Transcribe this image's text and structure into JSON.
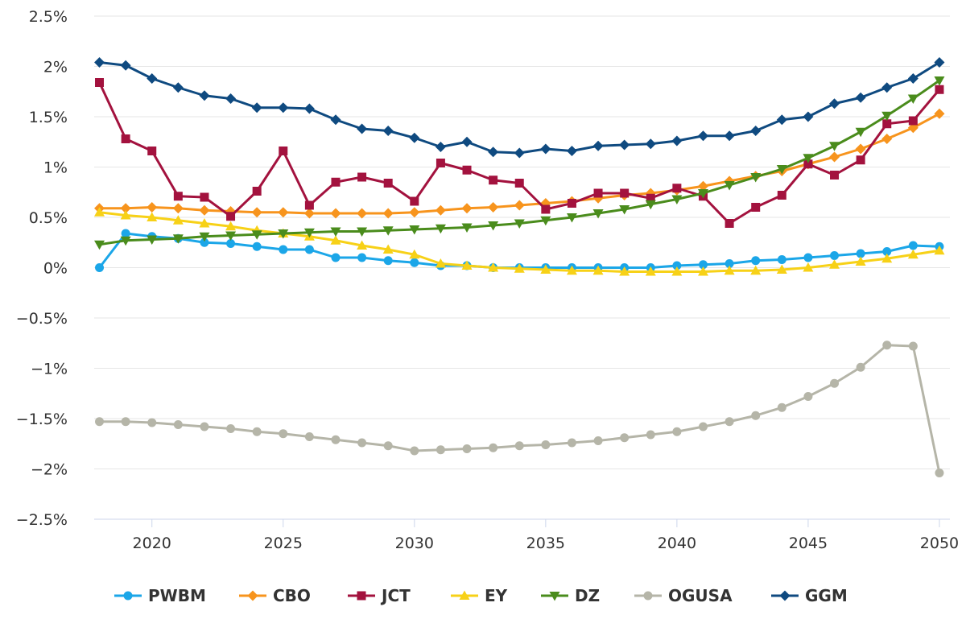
{
  "chart_data": {
    "type": "line",
    "title": "",
    "xlabel": "",
    "ylabel": "",
    "x": [
      2018,
      2019,
      2020,
      2021,
      2022,
      2023,
      2024,
      2025,
      2026,
      2027,
      2028,
      2029,
      2030,
      2031,
      2032,
      2033,
      2034,
      2035,
      2036,
      2037,
      2038,
      2039,
      2040,
      2041,
      2042,
      2043,
      2044,
      2045,
      2046,
      2047,
      2048,
      2049,
      2050
    ],
    "xlim": [
      2017.8,
      2050.4
    ],
    "ylim": [
      -2.5,
      2.5
    ],
    "x_ticks": [
      {
        "value": 2020,
        "label": "2020"
      },
      {
        "value": 2025,
        "label": "2025"
      },
      {
        "value": 2030,
        "label": "2030"
      },
      {
        "value": 2035,
        "label": "2035"
      },
      {
        "value": 2040,
        "label": "2040"
      },
      {
        "value": 2045,
        "label": "2045"
      },
      {
        "value": 2050,
        "label": "2050"
      }
    ],
    "y_ticks": [
      {
        "value": 2.5,
        "label": "2.5%"
      },
      {
        "value": 2,
        "label": "2%"
      },
      {
        "value": 1.5,
        "label": "1.5%"
      },
      {
        "value": 1,
        "label": "1%"
      },
      {
        "value": 0.5,
        "label": "0.5%"
      },
      {
        "value": 0,
        "label": "0%"
      },
      {
        "value": -0.5,
        "label": "−0.5%"
      },
      {
        "value": -1,
        "label": "−1%"
      },
      {
        "value": -1.5,
        "label": "−1.5%"
      },
      {
        "value": -2,
        "label": "−2%"
      },
      {
        "value": -2.5,
        "label": "−2.5%"
      }
    ],
    "grid": "horizontal",
    "legend_position": "bottom",
    "series": [
      {
        "name": "PWBM",
        "color": "#1ba6e8",
        "marker": "circle",
        "values": [
          0.0,
          0.34,
          0.31,
          0.29,
          0.25,
          0.24,
          0.21,
          0.18,
          0.18,
          0.1,
          0.1,
          0.07,
          0.05,
          0.02,
          0.02,
          0.0,
          0.0,
          0.0,
          0.0,
          0.0,
          0.0,
          0.0,
          0.02,
          0.03,
          0.04,
          0.07,
          0.08,
          0.1,
          0.12,
          0.14,
          0.16,
          0.22,
          0.21
        ]
      },
      {
        "name": "CBO",
        "color": "#f7941d",
        "marker": "diamond",
        "values": [
          0.59,
          0.59,
          0.6,
          0.59,
          0.57,
          0.56,
          0.55,
          0.55,
          0.54,
          0.54,
          0.54,
          0.54,
          0.55,
          0.57,
          0.59,
          0.6,
          0.62,
          0.64,
          0.66,
          0.69,
          0.72,
          0.74,
          0.77,
          0.81,
          0.86,
          0.91,
          0.96,
          1.03,
          1.1,
          1.18,
          1.28,
          1.39,
          1.53
        ]
      },
      {
        "name": "JCT",
        "color": "#a3123e",
        "marker": "square",
        "values": [
          1.84,
          1.28,
          1.16,
          0.71,
          0.7,
          0.51,
          0.76,
          1.16,
          0.62,
          0.85,
          0.9,
          0.84,
          0.66,
          1.04,
          0.97,
          0.87,
          0.84,
          0.58,
          0.64,
          0.74,
          0.74,
          0.69,
          0.79,
          0.71,
          0.44,
          0.6,
          0.72,
          1.03,
          0.92,
          1.07,
          1.43,
          1.46,
          1.77
        ]
      },
      {
        "name": "EY",
        "color": "#f7d117",
        "marker": "triangle-up",
        "values": [
          0.55,
          0.52,
          0.5,
          0.47,
          0.44,
          0.41,
          0.37,
          0.34,
          0.31,
          0.27,
          0.22,
          0.18,
          0.13,
          0.04,
          0.02,
          0.0,
          -0.01,
          -0.02,
          -0.03,
          -0.03,
          -0.04,
          -0.04,
          -0.04,
          -0.04,
          -0.03,
          -0.03,
          -0.02,
          0.0,
          0.03,
          0.06,
          0.09,
          0.13,
          0.17
        ]
      },
      {
        "name": "DZ",
        "color": "#4a8c1c",
        "marker": "triangle-down",
        "values": [
          0.23,
          0.27,
          0.28,
          0.29,
          0.31,
          0.32,
          0.33,
          0.34,
          0.35,
          0.36,
          0.36,
          0.37,
          0.38,
          0.39,
          0.4,
          0.42,
          0.44,
          0.47,
          0.5,
          0.54,
          0.58,
          0.63,
          0.68,
          0.74,
          0.82,
          0.9,
          0.98,
          1.09,
          1.21,
          1.35,
          1.51,
          1.68,
          1.86
        ]
      },
      {
        "name": "OGUSA",
        "color": "#b5b5a8",
        "marker": "circle",
        "values": [
          -1.53,
          -1.53,
          -1.54,
          -1.56,
          -1.58,
          -1.6,
          -1.63,
          -1.65,
          -1.68,
          -1.71,
          -1.74,
          -1.77,
          -1.82,
          -1.81,
          -1.8,
          -1.79,
          -1.77,
          -1.76,
          -1.74,
          -1.72,
          -1.69,
          -1.66,
          -1.63,
          -1.58,
          -1.53,
          -1.47,
          -1.39,
          -1.28,
          -1.15,
          -0.99,
          -0.77,
          -0.78,
          -2.04
        ]
      },
      {
        "name": "GGM",
        "color": "#0f4a80",
        "marker": "diamond",
        "values": [
          2.04,
          2.01,
          1.88,
          1.79,
          1.71,
          1.68,
          1.59,
          1.59,
          1.58,
          1.47,
          1.38,
          1.36,
          1.29,
          1.2,
          1.25,
          1.15,
          1.14,
          1.18,
          1.16,
          1.21,
          1.22,
          1.23,
          1.26,
          1.31,
          1.31,
          1.36,
          1.47,
          1.5,
          1.63,
          1.69,
          1.79,
          1.88,
          2.04
        ]
      }
    ]
  }
}
